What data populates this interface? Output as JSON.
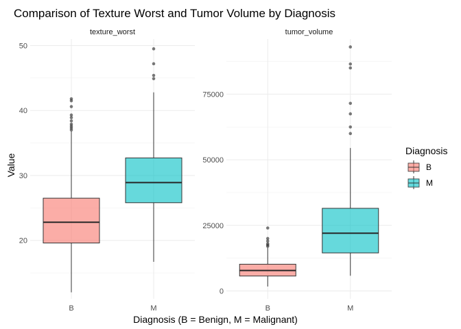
{
  "chart_data": {
    "type": "box",
    "title": "Comparison of Texture Worst and Tumor Volume by Diagnosis",
    "xlabel": "Diagnosis (B = Benign, M = Malignant)",
    "ylabel": "Value",
    "categories": [
      "B",
      "M"
    ],
    "grid": true,
    "legend": {
      "title": "Diagnosis",
      "position": "right",
      "items": [
        {
          "label": "B",
          "color": "#F8766D"
        },
        {
          "label": "M",
          "color": "#00BFC4"
        }
      ]
    },
    "facets": [
      {
        "name": "texture_worst",
        "ylim": [
          11,
          51
        ],
        "yticks": [
          20,
          30,
          40,
          50
        ],
        "ytick_labels": [
          "20",
          "30",
          "40",
          "50"
        ],
        "boxes": [
          {
            "group": "B",
            "min": 12.0,
            "q1": 19.6,
            "median": 22.8,
            "q3": 26.5,
            "max": 36.8,
            "outliers": [
              37.0,
              37.3,
              37.6,
              37.9,
              38.4,
              38.9,
              39.3,
              40.6,
              41.5,
              41.8
            ]
          },
          {
            "group": "M",
            "min": 16.7,
            "q1": 25.8,
            "median": 28.9,
            "q3": 32.7,
            "max": 42.8,
            "outliers": [
              44.9,
              45.4,
              47.2,
              49.5
            ]
          }
        ]
      },
      {
        "name": "tumor_volume",
        "ylim": [
          -3000,
          96000
        ],
        "yticks": [
          0,
          25000,
          50000,
          75000
        ],
        "ytick_labels": [
          "0",
          "25000",
          "50000",
          "75000"
        ],
        "boxes": [
          {
            "group": "B",
            "min": 1700,
            "q1": 5700,
            "median": 7800,
            "q3": 10200,
            "max": 16500,
            "outliers": [
              17000,
              17500,
              18000,
              19000,
              20000,
              24000
            ]
          },
          {
            "group": "M",
            "min": 5800,
            "q1": 14500,
            "median": 22000,
            "q3": 31500,
            "max": 54500,
            "outliers": [
              60000,
              62500,
              67500,
              71500,
              85000,
              86500,
              93000
            ]
          }
        ]
      }
    ]
  }
}
